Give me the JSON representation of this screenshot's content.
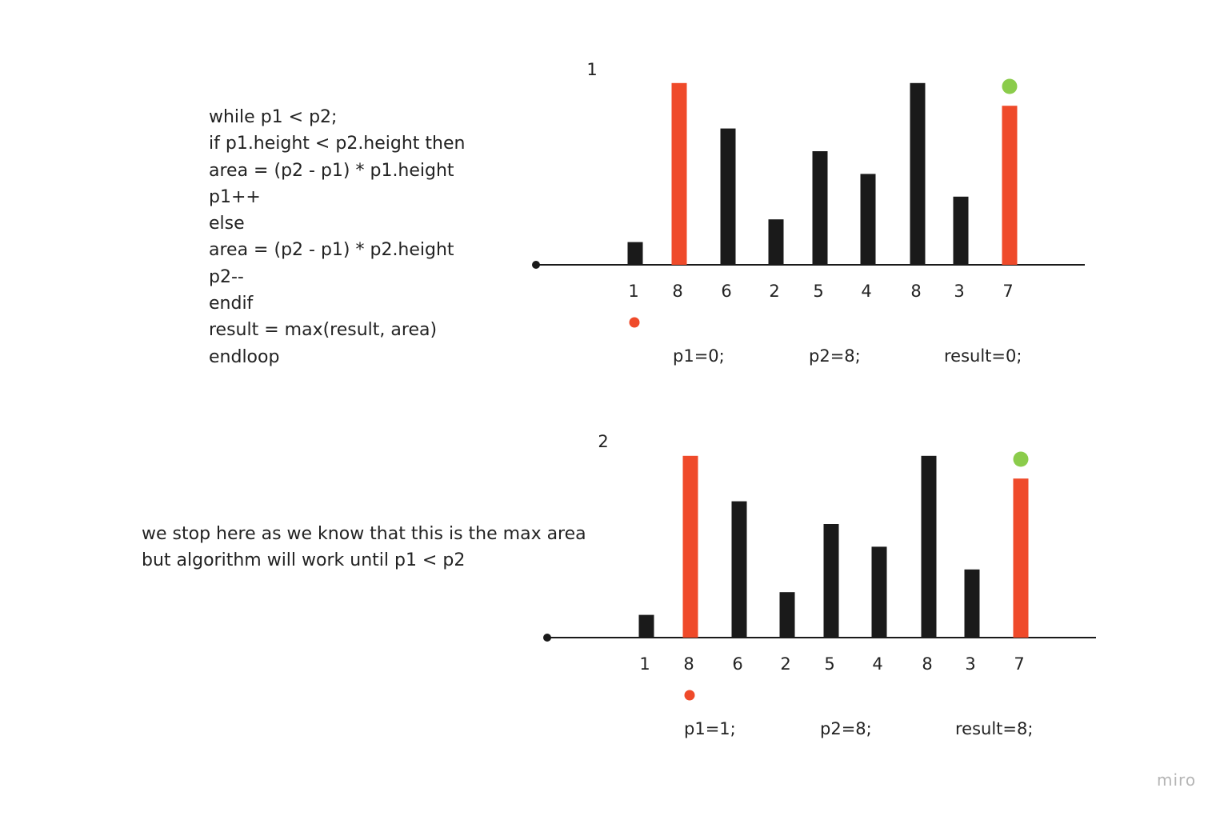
{
  "code_block": {
    "lines": [
      "while p1 < p2;",
      "if p1.height < p2.height then",
      "area = (p2 - p1) * p1.height",
      "p1++",
      "else",
      "area = (p2 - p1) * p2.height",
      "p2--",
      "endif",
      "result = max(result, area)",
      "endloop"
    ]
  },
  "note": {
    "lines": [
      "we stop here as we know that this is the max area",
      "but algorithm will work until p1 < p2"
    ]
  },
  "chart_data": [
    {
      "type": "bar",
      "step_label": "1",
      "categories": [
        "1",
        "8",
        "6",
        "2",
        "5",
        "4",
        "8",
        "3",
        "7"
      ],
      "values": [
        1,
        8,
        6,
        2,
        5,
        4,
        8,
        3,
        7
      ],
      "highlighted_indices": [
        1,
        8
      ],
      "p1_marker_index": 0,
      "p2_marker_index": 8,
      "state": {
        "p1": "p1=0;",
        "p2": "p2=8;",
        "result": "result=0;"
      }
    },
    {
      "type": "bar",
      "step_label": "2",
      "categories": [
        "1",
        "8",
        "6",
        "2",
        "5",
        "4",
        "8",
        "3",
        "7"
      ],
      "values": [
        1,
        8,
        6,
        2,
        5,
        4,
        8,
        3,
        7
      ],
      "highlighted_indices": [
        1,
        8
      ],
      "p1_marker_index": 1,
      "p2_marker_index": 8,
      "state": {
        "p1": "p1=1;",
        "p2": "p2=8;",
        "result": "result=8;"
      }
    }
  ],
  "colors": {
    "bar": "#1a1a1a",
    "highlight": "#ef4a2a",
    "p1_marker": "#ef4a2a",
    "p2_marker": "#8bcc4b",
    "axis": "#1a1a1a"
  },
  "brand": "miro"
}
